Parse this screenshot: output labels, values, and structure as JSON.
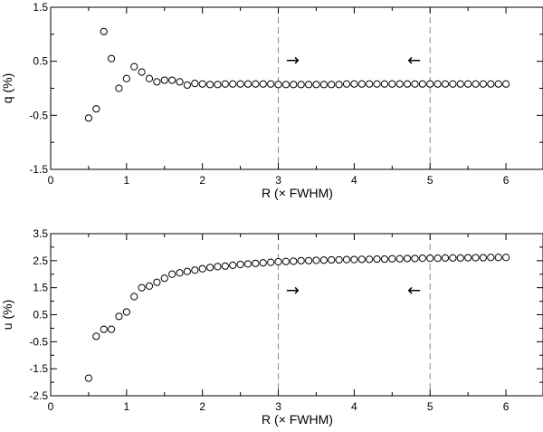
{
  "chart_data": [
    {
      "type": "scatter",
      "xlabel": "R (× FWHM)",
      "ylabel": "q (%)",
      "xlim": [
        0,
        6.5
      ],
      "ylim": [
        -1.5,
        1.5
      ],
      "xticks": [
        "0",
        "1",
        "2",
        "3",
        "4",
        "5",
        "6"
      ],
      "yticks": [
        "-1.5",
        "-0.5",
        "0.5",
        "1.5"
      ],
      "vlines": [
        3,
        5
      ],
      "annotations": [
        {
          "text": "→",
          "x": 3.1,
          "y": 0.42
        },
        {
          "text": "←",
          "x": 4.7,
          "y": 0.42
        }
      ],
      "x": [
        0.5,
        0.6,
        0.7,
        0.8,
        0.9,
        1.0,
        1.1,
        1.2,
        1.3,
        1.4,
        1.5,
        1.6,
        1.7,
        1.8,
        1.9,
        2.0,
        2.1,
        2.2,
        2.3,
        2.4,
        2.5,
        2.6,
        2.7,
        2.8,
        2.9,
        3.0,
        3.1,
        3.2,
        3.3,
        3.4,
        3.5,
        3.6,
        3.7,
        3.8,
        3.9,
        4.0,
        4.1,
        4.2,
        4.3,
        4.4,
        4.5,
        4.6,
        4.7,
        4.8,
        4.9,
        5.0,
        5.1,
        5.2,
        5.3,
        5.4,
        5.5,
        5.6,
        5.7,
        5.8,
        5.9,
        6.0
      ],
      "y": [
        -0.55,
        -0.38,
        1.05,
        0.55,
        0.0,
        0.18,
        0.4,
        0.3,
        0.18,
        0.12,
        0.15,
        0.15,
        0.12,
        0.06,
        0.09,
        0.08,
        0.07,
        0.07,
        0.08,
        0.08,
        0.08,
        0.08,
        0.08,
        0.08,
        0.08,
        0.07,
        0.07,
        0.07,
        0.07,
        0.07,
        0.07,
        0.07,
        0.07,
        0.07,
        0.08,
        0.08,
        0.08,
        0.08,
        0.08,
        0.08,
        0.08,
        0.08,
        0.08,
        0.08,
        0.08,
        0.08,
        0.08,
        0.08,
        0.08,
        0.08,
        0.08,
        0.08,
        0.08,
        0.08,
        0.08,
        0.08
      ]
    },
    {
      "type": "scatter",
      "xlabel": "R (× FWHM)",
      "ylabel": "u (%)",
      "xlim": [
        0,
        6.5
      ],
      "ylim": [
        -2.5,
        3.5
      ],
      "xticks": [
        "0",
        "1",
        "2",
        "3",
        "4",
        "5",
        "6"
      ],
      "yticks": [
        "-2.5",
        "-1.5",
        "-0.5",
        "0.5",
        "1.5",
        "2.5",
        "3.5"
      ],
      "vlines": [
        3,
        5
      ],
      "annotations": [
        {
          "text": "→",
          "x": 3.1,
          "y": 1.2
        },
        {
          "text": "←",
          "x": 4.7,
          "y": 1.2
        }
      ],
      "x": [
        0.5,
        0.6,
        0.7,
        0.8,
        0.9,
        1.0,
        1.1,
        1.2,
        1.3,
        1.4,
        1.5,
        1.6,
        1.7,
        1.8,
        1.9,
        2.0,
        2.1,
        2.2,
        2.3,
        2.4,
        2.5,
        2.6,
        2.7,
        2.8,
        2.9,
        3.0,
        3.1,
        3.2,
        3.3,
        3.4,
        3.5,
        3.6,
        3.7,
        3.8,
        3.9,
        4.0,
        4.1,
        4.2,
        4.3,
        4.4,
        4.5,
        4.6,
        4.7,
        4.8,
        4.9,
        5.0,
        5.1,
        5.2,
        5.3,
        5.4,
        5.5,
        5.6,
        5.7,
        5.8,
        5.9,
        6.0
      ],
      "y": [
        -1.85,
        -0.3,
        -0.04,
        -0.04,
        0.44,
        0.6,
        1.17,
        1.5,
        1.56,
        1.7,
        1.85,
        2.0,
        2.05,
        2.1,
        2.15,
        2.2,
        2.25,
        2.28,
        2.3,
        2.33,
        2.36,
        2.38,
        2.4,
        2.42,
        2.44,
        2.46,
        2.47,
        2.48,
        2.5,
        2.5,
        2.51,
        2.52,
        2.53,
        2.53,
        2.54,
        2.54,
        2.55,
        2.55,
        2.56,
        2.56,
        2.57,
        2.57,
        2.58,
        2.58,
        2.59,
        2.59,
        2.59,
        2.6,
        2.6,
        2.6,
        2.61,
        2.61,
        2.61,
        2.62,
        2.62,
        2.62
      ]
    }
  ]
}
